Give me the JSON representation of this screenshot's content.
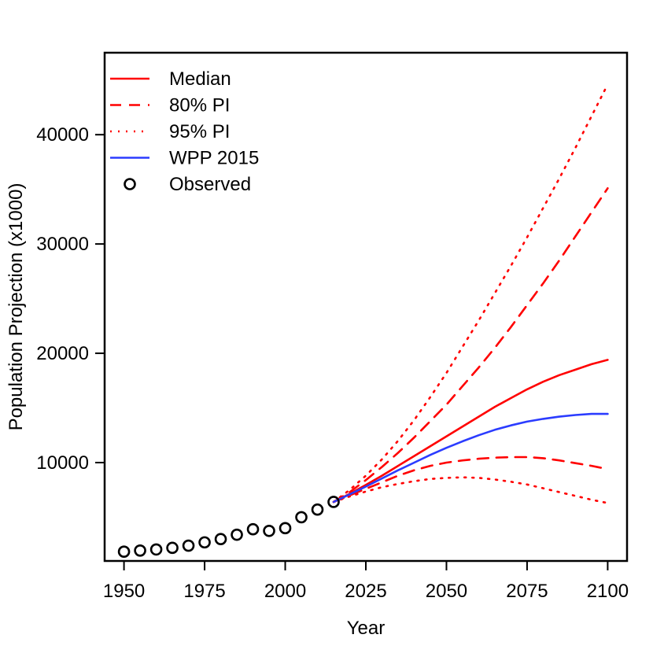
{
  "chart_data": {
    "type": "line",
    "title": "",
    "xlabel": "Year",
    "ylabel": "Population Projection (x1000)",
    "xlim": [
      1944,
      2106
    ],
    "ylim": [
      1000,
      47500
    ],
    "x_ticks": [
      1950,
      1975,
      2000,
      2025,
      2050,
      2075,
      2100
    ],
    "y_ticks": [
      10000,
      20000,
      30000,
      40000
    ],
    "x_tick_labels": [
      "1950",
      "1975",
      "2000",
      "2025",
      "2050",
      "2075",
      "2100"
    ],
    "y_tick_labels": [
      "10000",
      "20000",
      "30000",
      "40000"
    ],
    "grid": false,
    "legend_position": "top-left",
    "colors": {
      "projection": "#ff0000",
      "wpp": "#2b3cff",
      "observed": "#000000",
      "axis": "#000000"
    },
    "legend": [
      {
        "label": "Median",
        "style": "solid",
        "color": "#ff0000",
        "marker": "line"
      },
      {
        "label": "80% PI",
        "style": "dashed",
        "color": "#ff0000",
        "marker": "line"
      },
      {
        "label": "95% PI",
        "style": "dotted",
        "color": "#ff0000",
        "marker": "line"
      },
      {
        "label": "WPP 2015",
        "style": "solid",
        "color": "#2b3cff",
        "marker": "line"
      },
      {
        "label": "Observed",
        "style": "none",
        "color": "#000000",
        "marker": "circle"
      }
    ],
    "observed": {
      "x": [
        1950,
        1955,
        1960,
        1965,
        1970,
        1975,
        1980,
        1985,
        1990,
        1995,
        2000,
        2005,
        2010,
        2015
      ],
      "y": [
        1850,
        1950,
        2050,
        2200,
        2400,
        2700,
        3000,
        3400,
        3900,
        3750,
        4000,
        5000,
        5700,
        6400
      ]
    },
    "series": [
      {
        "name": "Median",
        "style": "solid",
        "color": "#ff0000",
        "x": [
          2015,
          2020,
          2025,
          2030,
          2035,
          2040,
          2045,
          2050,
          2055,
          2060,
          2065,
          2070,
          2075,
          2080,
          2085,
          2090,
          2095,
          2100
        ],
        "y": [
          6400,
          7150,
          7950,
          8800,
          9700,
          10600,
          11500,
          12400,
          13300,
          14200,
          15100,
          15900,
          16700,
          17400,
          18000,
          18500,
          19000,
          19400
        ]
      },
      {
        "name": "80% PI upper",
        "style": "dashed",
        "color": "#ff0000",
        "x": [
          2015,
          2020,
          2025,
          2030,
          2035,
          2040,
          2045,
          2050,
          2055,
          2060,
          2065,
          2070,
          2075,
          2080,
          2085,
          2090,
          2095,
          2100
        ],
        "y": [
          6400,
          7300,
          8400,
          9600,
          10900,
          12300,
          13800,
          15300,
          17000,
          18700,
          20500,
          22400,
          24400,
          26400,
          28500,
          30700,
          32900,
          35100
        ]
      },
      {
        "name": "80% PI lower",
        "style": "dashed",
        "color": "#ff0000",
        "x": [
          2015,
          2020,
          2025,
          2030,
          2035,
          2040,
          2045,
          2050,
          2055,
          2060,
          2065,
          2070,
          2075,
          2080,
          2085,
          2090,
          2095,
          2100
        ],
        "y": [
          6400,
          7000,
          7600,
          8200,
          8800,
          9300,
          9700,
          10000,
          10200,
          10350,
          10450,
          10500,
          10500,
          10400,
          10200,
          9950,
          9700,
          9400
        ]
      },
      {
        "name": "95% PI upper",
        "style": "dotted",
        "color": "#ff0000",
        "x": [
          2015,
          2020,
          2025,
          2030,
          2035,
          2040,
          2045,
          2050,
          2055,
          2060,
          2065,
          2070,
          2075,
          2080,
          2085,
          2090,
          2095,
          2100
        ],
        "y": [
          6400,
          7500,
          8800,
          10300,
          12000,
          13900,
          16000,
          18200,
          20600,
          23000,
          25500,
          28000,
          30600,
          33300,
          36000,
          38800,
          41700,
          44600
        ]
      },
      {
        "name": "95% PI lower",
        "style": "dotted",
        "color": "#ff0000",
        "x": [
          2015,
          2020,
          2025,
          2030,
          2035,
          2040,
          2045,
          2050,
          2055,
          2060,
          2065,
          2070,
          2075,
          2080,
          2085,
          2090,
          2095,
          2100
        ],
        "y": [
          6400,
          6900,
          7350,
          7750,
          8050,
          8300,
          8500,
          8600,
          8650,
          8600,
          8450,
          8250,
          8000,
          7650,
          7300,
          6950,
          6600,
          6300
        ]
      },
      {
        "name": "WPP 2015",
        "style": "solid",
        "color": "#2b3cff",
        "x": [
          2015,
          2020,
          2025,
          2030,
          2035,
          2040,
          2045,
          2050,
          2055,
          2060,
          2065,
          2070,
          2075,
          2080,
          2085,
          2090,
          2095,
          2100
        ],
        "y": [
          6400,
          7100,
          7800,
          8550,
          9300,
          10000,
          10700,
          11350,
          11950,
          12500,
          13000,
          13400,
          13750,
          14000,
          14200,
          14350,
          14450,
          14450
        ]
      }
    ]
  }
}
